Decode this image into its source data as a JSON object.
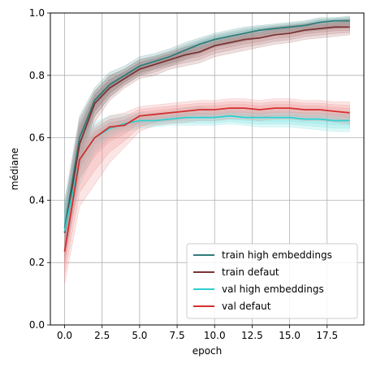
{
  "chart_data": {
    "type": "line",
    "title": "",
    "xlabel": "epoch",
    "ylabel": "médiane",
    "xlim": [
      -0.95,
      19.95
    ],
    "ylim": [
      0,
      1
    ],
    "xticks": [
      0.0,
      2.5,
      5.0,
      7.5,
      10.0,
      12.5,
      15.0,
      17.5
    ],
    "xtick_labels": [
      "0.0",
      "2.5",
      "5.0",
      "7.5",
      "10.0",
      "12.5",
      "15.0",
      "17.5"
    ],
    "yticks": [
      0.0,
      0.2,
      0.4,
      0.6,
      0.8,
      1.0
    ],
    "ytick_labels": [
      "0.0",
      "0.2",
      "0.4",
      "0.6",
      "0.8",
      "1.0"
    ],
    "grid": true,
    "legend_position": "lower-right",
    "x": [
      0,
      1,
      2,
      3,
      4,
      5,
      6,
      7,
      8,
      9,
      10,
      11,
      12,
      13,
      14,
      15,
      16,
      17,
      18,
      19
    ],
    "series": [
      {
        "name": "train high embeddings",
        "color": "#2e7d7a",
        "band_color": "#5e9c9a",
        "values": [
          0.31,
          0.6,
          0.72,
          0.77,
          0.8,
          0.83,
          0.845,
          0.86,
          0.88,
          0.9,
          0.915,
          0.925,
          0.935,
          0.945,
          0.95,
          0.955,
          0.96,
          0.97,
          0.975,
          0.975
        ],
        "band_low": [
          0.22,
          0.53,
          0.67,
          0.73,
          0.77,
          0.8,
          0.82,
          0.83,
          0.85,
          0.87,
          0.89,
          0.9,
          0.91,
          0.92,
          0.93,
          0.935,
          0.94,
          0.945,
          0.95,
          0.955
        ],
        "band_high": [
          0.4,
          0.67,
          0.76,
          0.81,
          0.83,
          0.86,
          0.87,
          0.885,
          0.905,
          0.92,
          0.935,
          0.945,
          0.955,
          0.96,
          0.965,
          0.97,
          0.975,
          0.985,
          0.985,
          0.99
        ]
      },
      {
        "name": "train defaut",
        "color": "#7a3535",
        "band_color": "#b07070",
        "values": [
          0.295,
          0.58,
          0.71,
          0.76,
          0.79,
          0.82,
          0.835,
          0.85,
          0.865,
          0.875,
          0.895,
          0.905,
          0.915,
          0.92,
          0.93,
          0.935,
          0.945,
          0.95,
          0.955,
          0.955
        ],
        "band_low": [
          0.2,
          0.5,
          0.65,
          0.72,
          0.76,
          0.79,
          0.8,
          0.82,
          0.83,
          0.84,
          0.86,
          0.87,
          0.88,
          0.89,
          0.9,
          0.905,
          0.915,
          0.92,
          0.925,
          0.93
        ],
        "band_high": [
          0.38,
          0.66,
          0.75,
          0.8,
          0.82,
          0.85,
          0.86,
          0.875,
          0.89,
          0.9,
          0.915,
          0.925,
          0.935,
          0.945,
          0.955,
          0.96,
          0.965,
          0.97,
          0.975,
          0.98
        ]
      },
      {
        "name": "val high embeddings",
        "color": "#2ecfcf",
        "band_color": "#6fe0e0",
        "values": [
          0.3,
          0.53,
          0.6,
          0.63,
          0.645,
          0.655,
          0.655,
          0.66,
          0.665,
          0.665,
          0.665,
          0.67,
          0.665,
          0.665,
          0.665,
          0.665,
          0.66,
          0.66,
          0.655,
          0.655
        ],
        "band_low": [
          0.22,
          0.45,
          0.55,
          0.6,
          0.62,
          0.63,
          0.635,
          0.64,
          0.64,
          0.64,
          0.64,
          0.645,
          0.64,
          0.635,
          0.635,
          0.635,
          0.63,
          0.625,
          0.62,
          0.62
        ],
        "band_high": [
          0.38,
          0.6,
          0.65,
          0.67,
          0.675,
          0.68,
          0.68,
          0.685,
          0.695,
          0.7,
          0.69,
          0.695,
          0.69,
          0.69,
          0.69,
          0.69,
          0.69,
          0.69,
          0.685,
          0.685
        ]
      },
      {
        "name": "val defaut",
        "color": "#d62f2f",
        "band_color": "#ec8a8a",
        "values": [
          0.235,
          0.53,
          0.6,
          0.635,
          0.64,
          0.67,
          0.675,
          0.68,
          0.685,
          0.69,
          0.69,
          0.695,
          0.695,
          0.69,
          0.695,
          0.695,
          0.69,
          0.69,
          0.685,
          0.68
        ],
        "band_low": [
          0.13,
          0.38,
          0.45,
          0.52,
          0.57,
          0.62,
          0.64,
          0.645,
          0.65,
          0.655,
          0.655,
          0.66,
          0.66,
          0.655,
          0.66,
          0.66,
          0.655,
          0.655,
          0.65,
          0.645
        ],
        "band_high": [
          0.3,
          0.6,
          0.64,
          0.67,
          0.68,
          0.7,
          0.705,
          0.71,
          0.715,
          0.72,
          0.72,
          0.725,
          0.725,
          0.72,
          0.725,
          0.725,
          0.72,
          0.72,
          0.715,
          0.715
        ]
      }
    ]
  }
}
